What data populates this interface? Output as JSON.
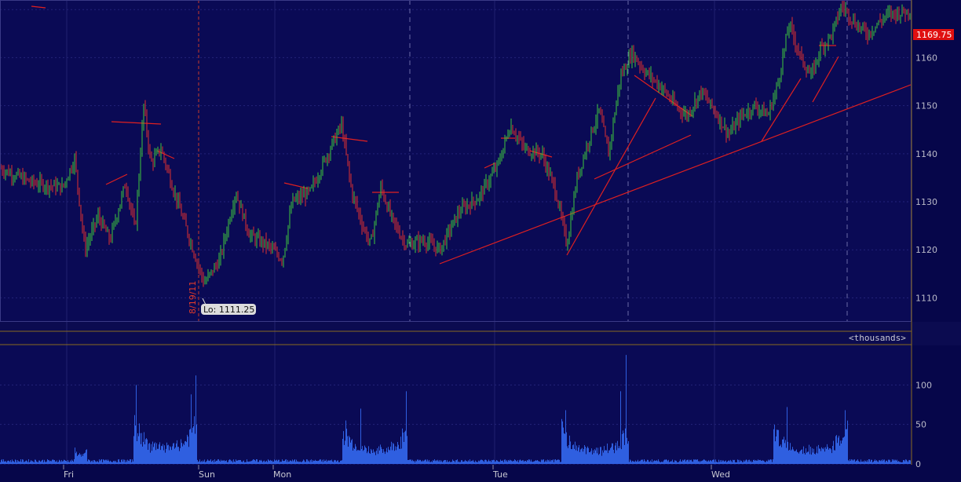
{
  "chart_data": [
    {
      "type": "candlestick",
      "ylim": [
        1105,
        1172
      ],
      "y_ticks": [
        1110,
        1120,
        1130,
        1140,
        1150,
        1160
      ],
      "x_day_labels": [
        "Fri",
        "Sun",
        "Mon",
        "Tue",
        "Wed"
      ],
      "last_price": "1169.75",
      "low_label": "Lo: 1111.25",
      "date_marker": "8/19/11",
      "grid": true,
      "price_path": [
        [
          0,
          1137
        ],
        [
          40,
          1134
        ],
        [
          80,
          1133
        ],
        [
          95,
          1139
        ],
        [
          108,
          1120
        ],
        [
          125,
          1127
        ],
        [
          140,
          1122
        ],
        [
          160,
          1134
        ],
        [
          172,
          1124
        ],
        [
          183,
          1150
        ],
        [
          192,
          1138
        ],
        [
          205,
          1141
        ],
        [
          222,
          1132
        ],
        [
          240,
          1123
        ],
        [
          252,
          1117
        ],
        [
          260,
          1113
        ],
        [
          280,
          1118
        ],
        [
          300,
          1132
        ],
        [
          318,
          1123
        ],
        [
          340,
          1121
        ],
        [
          360,
          1118
        ],
        [
          372,
          1130
        ],
        [
          395,
          1132
        ],
        [
          420,
          1141
        ],
        [
          435,
          1146
        ],
        [
          448,
          1132
        ],
        [
          462,
          1125
        ],
        [
          472,
          1121
        ],
        [
          485,
          1133
        ],
        [
          500,
          1126
        ],
        [
          518,
          1121
        ],
        [
          540,
          1122
        ],
        [
          560,
          1120
        ],
        [
          585,
          1128
        ],
        [
          610,
          1131
        ],
        [
          635,
          1138
        ],
        [
          650,
          1146
        ],
        [
          668,
          1141
        ],
        [
          690,
          1140
        ],
        [
          708,
          1132
        ],
        [
          722,
          1121
        ],
        [
          735,
          1135
        ],
        [
          750,
          1143
        ],
        [
          763,
          1149
        ],
        [
          775,
          1140
        ],
        [
          790,
          1156
        ],
        [
          805,
          1161
        ],
        [
          822,
          1157
        ],
        [
          842,
          1154
        ],
        [
          860,
          1150
        ],
        [
          875,
          1148
        ],
        [
          893,
          1153
        ],
        [
          910,
          1149
        ],
        [
          928,
          1144
        ],
        [
          945,
          1148
        ],
        [
          962,
          1150
        ],
        [
          978,
          1148
        ],
        [
          990,
          1154
        ],
        [
          1005,
          1167
        ],
        [
          1020,
          1160
        ],
        [
          1033,
          1156
        ],
        [
          1045,
          1162
        ],
        [
          1060,
          1165
        ],
        [
          1072,
          1171
        ],
        [
          1090,
          1167
        ],
        [
          1105,
          1165
        ],
        [
          1130,
          1169
        ],
        [
          1160,
          1169.75
        ]
      ]
    },
    {
      "type": "bar",
      "ylim": [
        0,
        150
      ],
      "y_ticks": [
        0,
        50,
        100
      ],
      "units_label": "<thousands>"
    }
  ]
}
